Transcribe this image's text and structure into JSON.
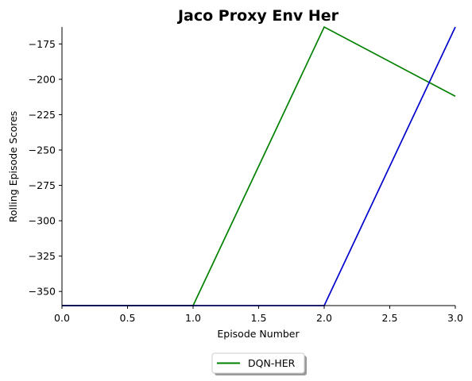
{
  "chart_data": {
    "type": "line",
    "title": "Jaco Proxy Env Her",
    "xlabel": "Episode Number",
    "ylabel": "Rolling Episode Scores",
    "xlim": [
      0,
      3
    ],
    "ylim": [
      -360,
      -163
    ],
    "xticks": [
      "0.0",
      "0.5",
      "1.0",
      "1.5",
      "2.0",
      "2.5",
      "3.0"
    ],
    "yticks": [
      "−175",
      "−200",
      "−225",
      "−250",
      "−275",
      "−300",
      "−325",
      "−350"
    ],
    "grid": false,
    "legend_position": "below",
    "series": [
      {
        "name": "DQN-HER",
        "color": "#008000",
        "x": [
          0,
          1,
          2,
          3
        ],
        "y": [
          -360,
          -360,
          -163,
          -212
        ]
      },
      {
        "name": "",
        "color": "#0000cc",
        "x": [
          0,
          1,
          2,
          3
        ],
        "y": [
          -360,
          -360,
          -360,
          -163
        ]
      }
    ]
  }
}
